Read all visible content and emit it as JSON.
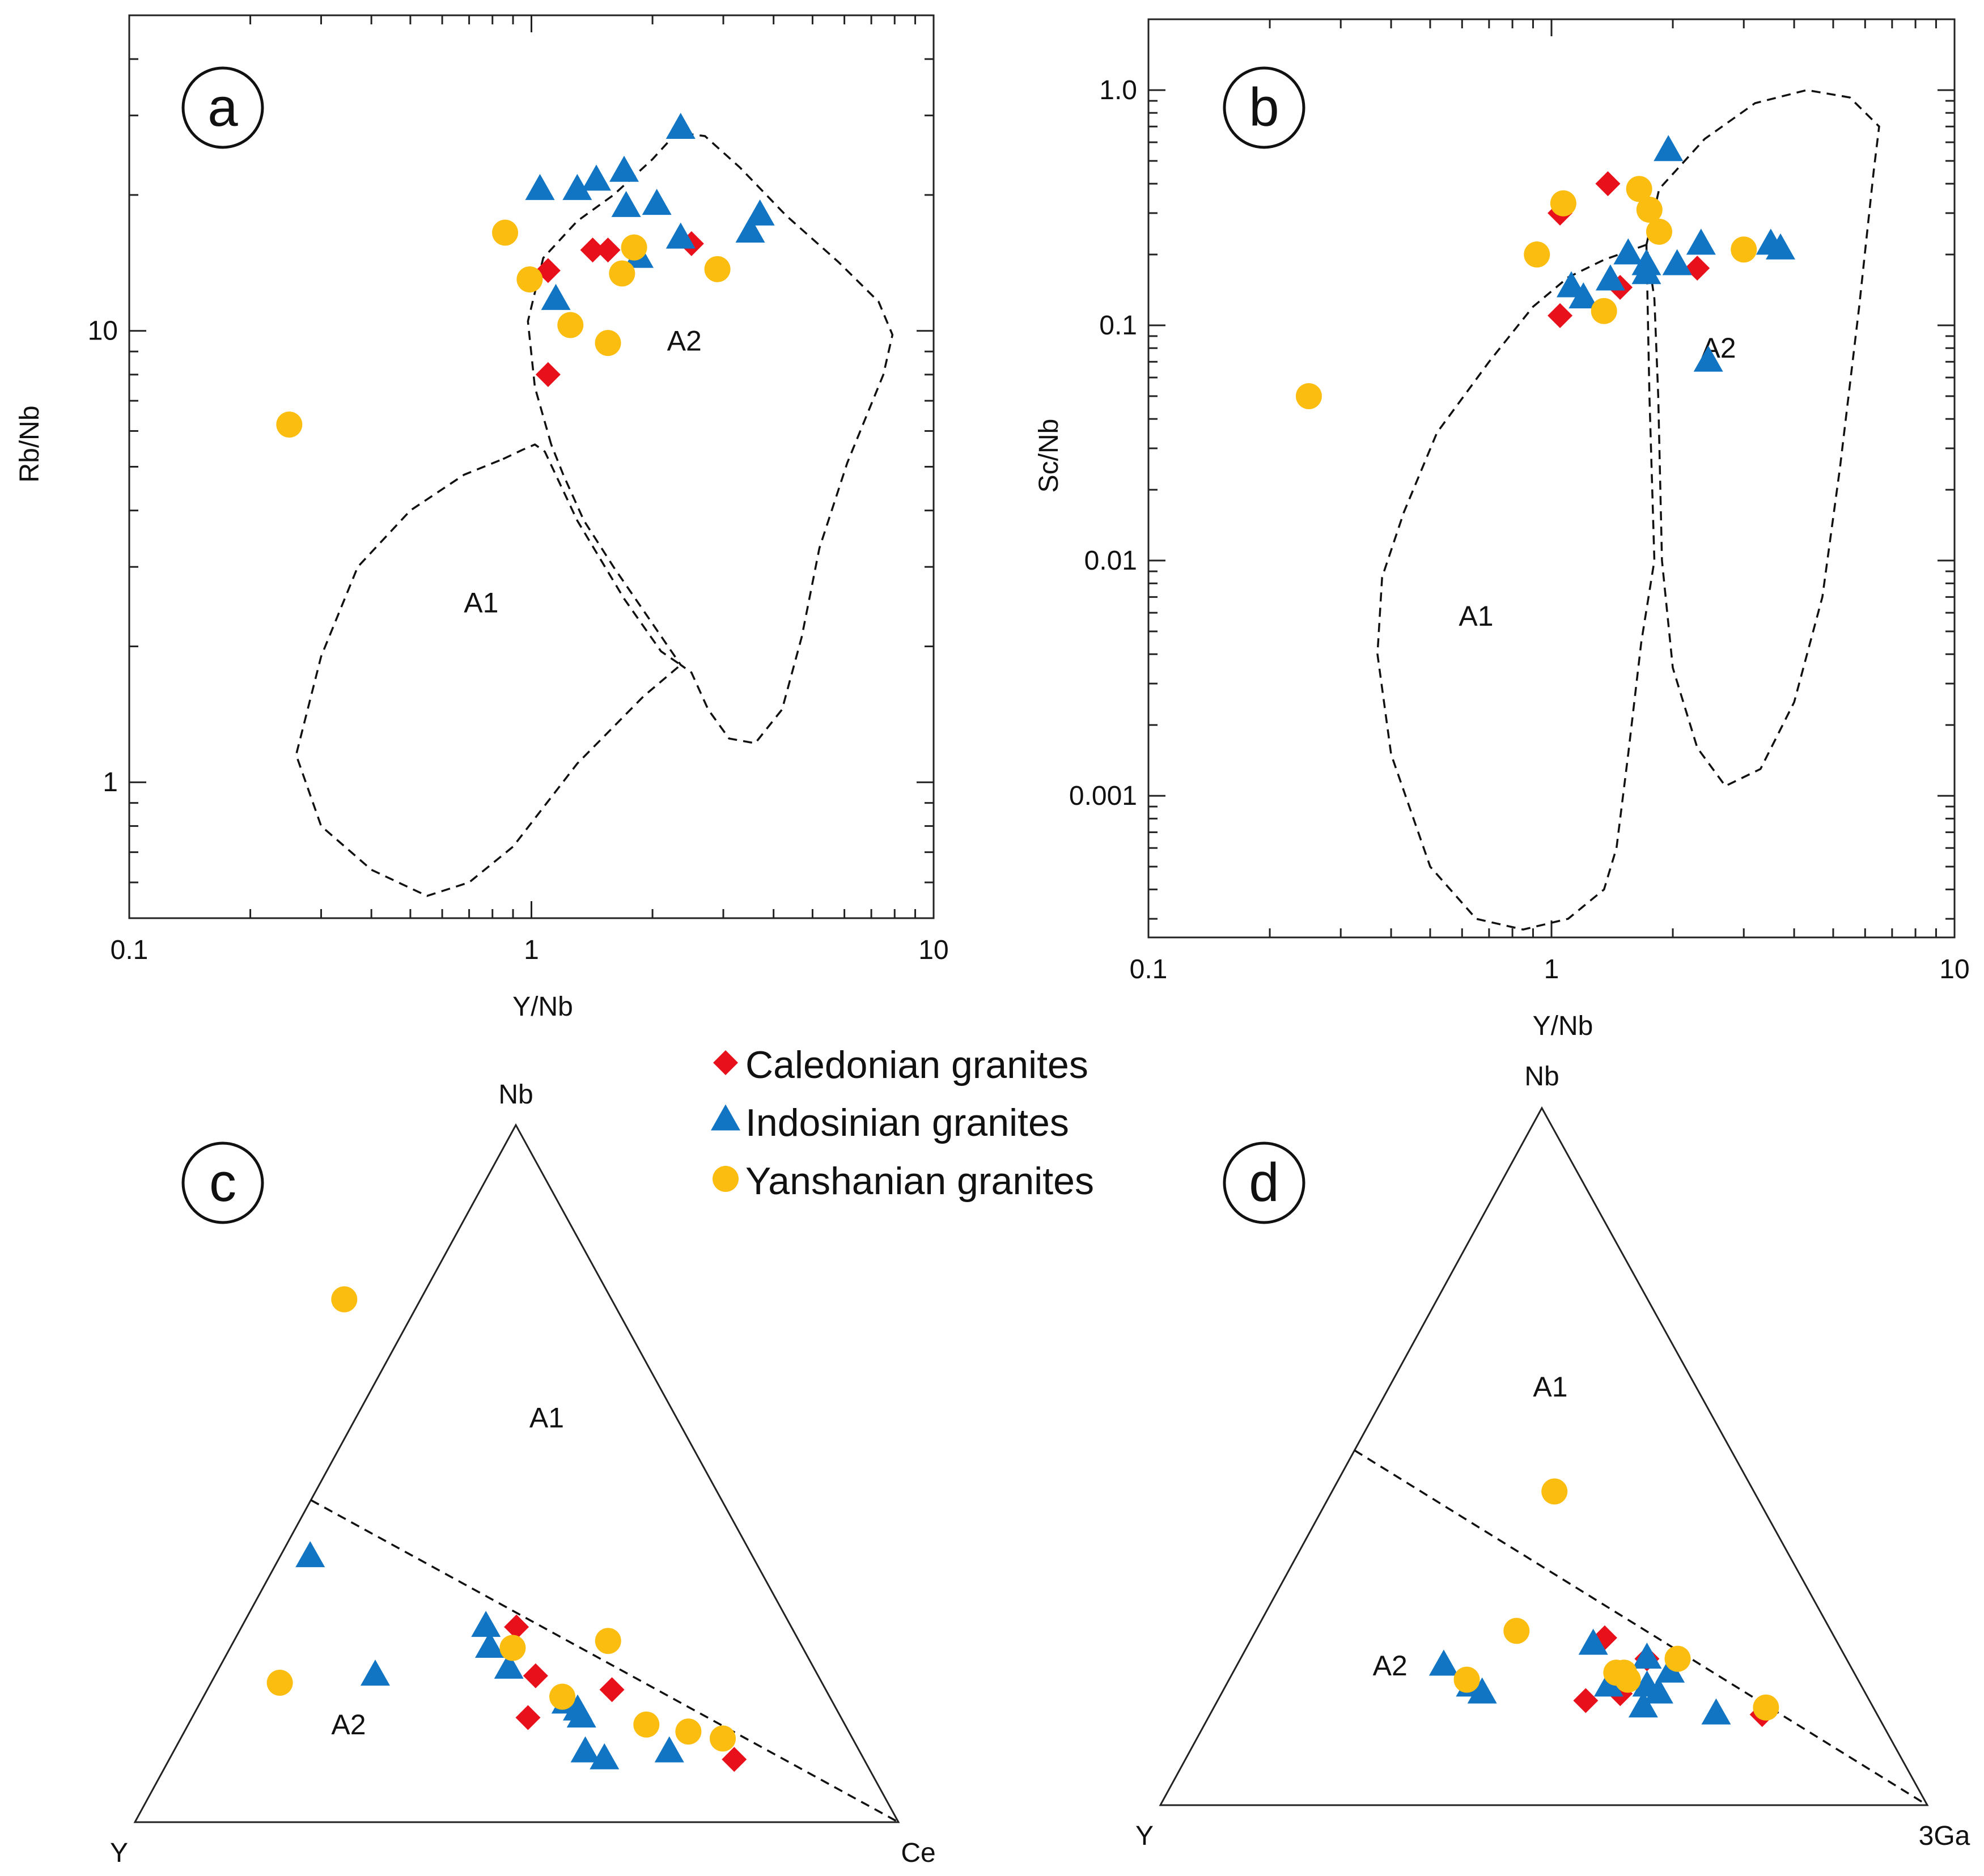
{
  "colors": {
    "caledonian": "#e8101a",
    "indosinian": "#1275c4",
    "yanshanian": "#fbbd10",
    "line": "#111111"
  },
  "legend": {
    "items": [
      {
        "key": "caledonian",
        "label": "Caledonian granites",
        "marker": "diamond"
      },
      {
        "key": "indosinian",
        "label": "Indosinian granites",
        "marker": "triangle"
      },
      {
        "key": "yanshanian",
        "label": "Yanshanian granites",
        "marker": "circle"
      }
    ]
  },
  "chart_data": [
    {
      "id": "a",
      "panel_label": "a",
      "type": "scatter",
      "xlabel": "Y/Nb",
      "ylabel": "Rb/Nb",
      "xscale": "log",
      "yscale": "log",
      "xlim": [
        0.1,
        10
      ],
      "ylim": [
        0.5,
        50
      ],
      "x_tick_labels": [
        "0.1",
        "1",
        "10"
      ],
      "y_tick_labels": [
        "1",
        "10"
      ],
      "fields": [
        {
          "label": "A1",
          "at": [
            0.75,
            2.5
          ],
          "boundary": [
            [
              0.85,
              5.2
            ],
            [
              0.95,
              5.45
            ],
            [
              1.02,
              5.6
            ],
            [
              1.08,
              5.4
            ],
            [
              1.3,
              3.8
            ],
            [
              1.7,
              2.55
            ],
            [
              2.1,
              1.95
            ],
            [
              2.35,
              1.82
            ],
            [
              1.9,
              1.55
            ],
            [
              1.3,
              1.1
            ],
            [
              0.9,
              0.72
            ],
            [
              0.7,
              0.6
            ],
            [
              0.55,
              0.56
            ],
            [
              0.4,
              0.64
            ],
            [
              0.3,
              0.8
            ],
            [
              0.26,
              1.15
            ],
            [
              0.3,
              1.9
            ],
            [
              0.37,
              3.0
            ],
            [
              0.5,
              4.0
            ],
            [
              0.68,
              4.8
            ],
            [
              0.85,
              5.2
            ]
          ]
        },
        {
          "label": "A2",
          "at": [
            2.4,
            9.5
          ],
          "boundary": [
            [
              1.12,
              5.6
            ],
            [
              1.02,
              7.5
            ],
            [
              0.98,
              10.5
            ],
            [
              1.07,
              14.5
            ],
            [
              1.3,
              17.5
            ],
            [
              1.6,
              20
            ],
            [
              2.0,
              24
            ],
            [
              2.3,
              27.5
            ],
            [
              2.7,
              27
            ],
            [
              3.3,
              23
            ],
            [
              4.3,
              18
            ],
            [
              5.8,
              14.2
            ],
            [
              7.3,
              11.6
            ],
            [
              7.9,
              9.8
            ],
            [
              7.5,
              8
            ],
            [
              6.1,
              5.1
            ],
            [
              5.2,
              3.3
            ],
            [
              4.7,
              2.1
            ],
            [
              4.2,
              1.45
            ],
            [
              3.6,
              1.22
            ],
            [
              3.1,
              1.25
            ],
            [
              2.75,
              1.45
            ],
            [
              2.5,
              1.75
            ],
            [
              2.35,
              1.82
            ],
            [
              1.9,
              2.4
            ],
            [
              1.6,
              3.0
            ],
            [
              1.35,
              3.8
            ],
            [
              1.2,
              4.8
            ],
            [
              1.12,
              5.6
            ]
          ]
        }
      ],
      "series": [
        {
          "name": "Caledonian granites",
          "key": "caledonian",
          "marker": "diamond",
          "points": [
            [
              1.1,
              13.6
            ],
            [
              1.42,
              15.1
            ],
            [
              1.55,
              15.1
            ],
            [
              2.5,
              15.6
            ],
            [
              1.1,
              8.0
            ]
          ]
        },
        {
          "name": "Indosinian granites",
          "key": "indosinian",
          "marker": "triangle",
          "points": [
            [
              1.05,
              20.5
            ],
            [
              1.3,
              20.5
            ],
            [
              1.45,
              21.5
            ],
            [
              1.7,
              22.5
            ],
            [
              2.35,
              28.0
            ],
            [
              1.72,
              18.8
            ],
            [
              2.05,
              19.0
            ],
            [
              3.7,
              18.0
            ],
            [
              3.5,
              16.5
            ],
            [
              2.35,
              16.0
            ],
            [
              1.85,
              14.5
            ],
            [
              1.15,
              11.7
            ]
          ]
        },
        {
          "name": "Yanshanian granites",
          "key": "yanshanian",
          "marker": "circle",
          "points": [
            [
              0.86,
              16.5
            ],
            [
              0.99,
              13.0
            ],
            [
              1.25,
              10.3
            ],
            [
              1.55,
              9.4
            ],
            [
              1.68,
              13.4
            ],
            [
              1.8,
              15.3
            ],
            [
              2.9,
              13.7
            ],
            [
              0.25,
              6.2
            ]
          ]
        }
      ]
    },
    {
      "id": "b",
      "panel_label": "b",
      "type": "scatter",
      "xlabel": "Y/Nb",
      "ylabel": "Sc/Nb",
      "xscale": "log",
      "yscale": "log",
      "xlim": [
        0.1,
        10
      ],
      "ylim": [
        0.00025,
        2
      ],
      "x_tick_labels": [
        "0.1",
        "1",
        "10"
      ],
      "y_tick_labels": [
        "0.001",
        "0.01",
        "0.1",
        "1.0"
      ],
      "fields": [
        {
          "label": "A1",
          "at": [
            0.65,
            0.0058
          ],
          "boundary": [
            [
              1.72,
              0.22
            ],
            [
              1.35,
              0.19
            ],
            [
              1.1,
              0.16
            ],
            [
              0.9,
              0.12
            ],
            [
              0.7,
              0.07
            ],
            [
              0.52,
              0.035
            ],
            [
              0.43,
              0.016
            ],
            [
              0.38,
              0.0085
            ],
            [
              0.37,
              0.004
            ],
            [
              0.4,
              0.0015
            ],
            [
              0.5,
              0.0005
            ],
            [
              0.65,
              0.0003
            ],
            [
              0.85,
              0.00027
            ],
            [
              1.1,
              0.0003
            ],
            [
              1.35,
              0.0004
            ],
            [
              1.45,
              0.0006
            ],
            [
              1.55,
              0.0015
            ],
            [
              1.67,
              0.0045
            ],
            [
              1.8,
              0.01
            ],
            [
              1.75,
              0.05
            ],
            [
              1.72,
              0.22
            ]
          ]
        },
        {
          "label": "A2",
          "at": [
            2.6,
            0.08
          ],
          "boundary": [
            [
              1.72,
              0.22
            ],
            [
              1.85,
              0.38
            ],
            [
              2.4,
              0.62
            ],
            [
              3.2,
              0.88
            ],
            [
              4.3,
              1.0
            ],
            [
              5.5,
              0.93
            ],
            [
              6.5,
              0.7
            ],
            [
              6.3,
              0.45
            ],
            [
              5.8,
              0.12
            ],
            [
              5.2,
              0.025
            ],
            [
              4.7,
              0.007
            ],
            [
              4.0,
              0.0025
            ],
            [
              3.3,
              0.0013
            ],
            [
              2.7,
              0.0011
            ],
            [
              2.3,
              0.0016
            ],
            [
              2.0,
              0.0035
            ],
            [
              1.88,
              0.01
            ],
            [
              1.84,
              0.05
            ],
            [
              1.8,
              0.13
            ],
            [
              1.72,
              0.22
            ]
          ]
        }
      ],
      "series": [
        {
          "name": "Caledonian granites",
          "key": "caledonian",
          "marker": "diamond",
          "points": [
            [
              1.05,
              0.3
            ],
            [
              1.38,
              0.4
            ],
            [
              1.48,
              0.145
            ],
            [
              2.3,
              0.175
            ],
            [
              1.05,
              0.11
            ]
          ]
        },
        {
          "name": "Indosinian granites",
          "key": "indosinian",
          "marker": "triangle",
          "points": [
            [
              1.95,
              0.55
            ],
            [
              1.55,
              0.2
            ],
            [
              1.72,
              0.18
            ],
            [
              2.05,
              0.18
            ],
            [
              2.35,
              0.22
            ],
            [
              3.5,
              0.22
            ],
            [
              3.7,
              0.21
            ],
            [
              1.72,
              0.165
            ],
            [
              1.4,
              0.155
            ],
            [
              1.12,
              0.145
            ],
            [
              1.2,
              0.13
            ],
            [
              2.45,
              0.07
            ]
          ]
        },
        {
          "name": "Yanshanian granites",
          "key": "yanshanian",
          "marker": "circle",
          "points": [
            [
              1.07,
              0.33
            ],
            [
              1.65,
              0.38
            ],
            [
              1.75,
              0.31
            ],
            [
              1.85,
              0.25
            ],
            [
              0.92,
              0.2
            ],
            [
              3.0,
              0.21
            ],
            [
              1.35,
              0.115
            ],
            [
              0.25,
              0.05
            ]
          ]
        }
      ]
    },
    {
      "id": "c",
      "panel_label": "c",
      "type": "ternary",
      "apex_labels": {
        "top": "Nb",
        "left": "Y",
        "right": "Ce"
      },
      "components_order": [
        "Nb",
        "Y",
        "Ce"
      ],
      "divider": [
        [
          0.462,
          0.538,
          0
        ],
        [
          0,
          0,
          1
        ]
      ],
      "fields": [
        {
          "label": "A1",
          "composition": [
            0.58,
            0.17,
            0.25
          ]
        },
        {
          "label": "A2",
          "composition": [
            0.14,
            0.65,
            0.21
          ]
        }
      ],
      "series": [
        {
          "name": "Caledonian granites",
          "key": "caledonian",
          "marker": "diamond",
          "points": [
            [
              0.28,
              0.36,
              0.36
            ],
            [
              0.21,
              0.37,
              0.42
            ],
            [
              0.19,
              0.28,
              0.53
            ],
            [
              0.15,
              0.41,
              0.44
            ],
            [
              0.09,
              0.17,
              0.74
            ]
          ]
        },
        {
          "name": "Indosinian granites",
          "key": "indosinian",
          "marker": "triangle",
          "points": [
            [
              0.38,
              0.58,
              0.04
            ],
            [
              0.21,
              0.58,
              0.21
            ],
            [
              0.28,
              0.4,
              0.32
            ],
            [
              0.25,
              0.41,
              0.34
            ],
            [
              0.22,
              0.4,
              0.38
            ],
            [
              0.17,
              0.35,
              0.48
            ],
            [
              0.16,
              0.34,
              0.5
            ],
            [
              0.15,
              0.34,
              0.51
            ],
            [
              0.1,
              0.36,
              0.54
            ],
            [
              0.09,
              0.34,
              0.57
            ],
            [
              0.1,
              0.25,
              0.65
            ]
          ]
        },
        {
          "name": "Yanshanian granites",
          "key": "yanshanian",
          "marker": "circle",
          "points": [
            [
              0.75,
              0.35,
              -0.1
            ],
            [
              0.2,
              0.71,
              0.09
            ],
            [
              0.25,
              0.38,
              0.37
            ],
            [
              0.26,
              0.25,
              0.49
            ],
            [
              0.18,
              0.35,
              0.47
            ],
            [
              0.14,
              0.26,
              0.6
            ],
            [
              0.13,
              0.21,
              0.66
            ],
            [
              0.12,
              0.17,
              0.71
            ]
          ]
        }
      ]
    },
    {
      "id": "d",
      "panel_label": "d",
      "type": "ternary",
      "apex_labels": {
        "top": "Nb",
        "left": "Y",
        "right": "3Ga"
      },
      "components_order": [
        "Nb",
        "Y",
        "3Ga"
      ],
      "divider": [
        [
          0.509,
          0.491,
          0
        ],
        [
          0,
          0,
          1
        ]
      ],
      "fields": [
        {
          "label": "A1",
          "composition": [
            0.6,
            0.19,
            0.21
          ]
        },
        {
          "label": "A2",
          "composition": [
            0.2,
            0.6,
            0.2
          ]
        }
      ],
      "series": [
        {
          "name": "Caledonian granites",
          "key": "caledonian",
          "marker": "diamond",
          "points": [
            [
              0.24,
              0.3,
              0.46
            ],
            [
              0.21,
              0.26,
              0.53
            ],
            [
              0.16,
              0.32,
              0.52
            ],
            [
              0.15,
              0.37,
              0.48
            ],
            [
              0.13,
              0.15,
              0.72
            ]
          ]
        },
        {
          "name": "Indosinian granites",
          "key": "indosinian",
          "marker": "triangle",
          "points": [
            [
              0.2,
              0.53,
              0.27
            ],
            [
              0.17,
              0.51,
              0.32
            ],
            [
              0.16,
              0.5,
              0.34
            ],
            [
              0.23,
              0.32,
              0.45
            ],
            [
              0.21,
              0.26,
              0.53
            ],
            [
              0.19,
              0.24,
              0.57
            ],
            [
              0.17,
              0.33,
              0.5
            ],
            [
              0.17,
              0.28,
              0.55
            ],
            [
              0.16,
              0.27,
              0.57
            ],
            [
              0.14,
              0.3,
              0.56
            ],
            [
              0.13,
              0.21,
              0.66
            ]
          ]
        },
        {
          "name": "Yanshanian granites",
          "key": "yanshanian",
          "marker": "circle",
          "points": [
            [
              0.45,
              0.26,
              0.29
            ],
            [
              0.25,
              0.41,
              0.34
            ],
            [
              0.18,
              0.51,
              0.31
            ],
            [
              0.19,
              0.31,
              0.5
            ],
            [
              0.18,
              0.3,
              0.52
            ],
            [
              0.19,
              0.3,
              0.51
            ],
            [
              0.21,
              0.22,
              0.57
            ],
            [
              0.14,
              0.14,
              0.72
            ]
          ]
        }
      ]
    }
  ]
}
